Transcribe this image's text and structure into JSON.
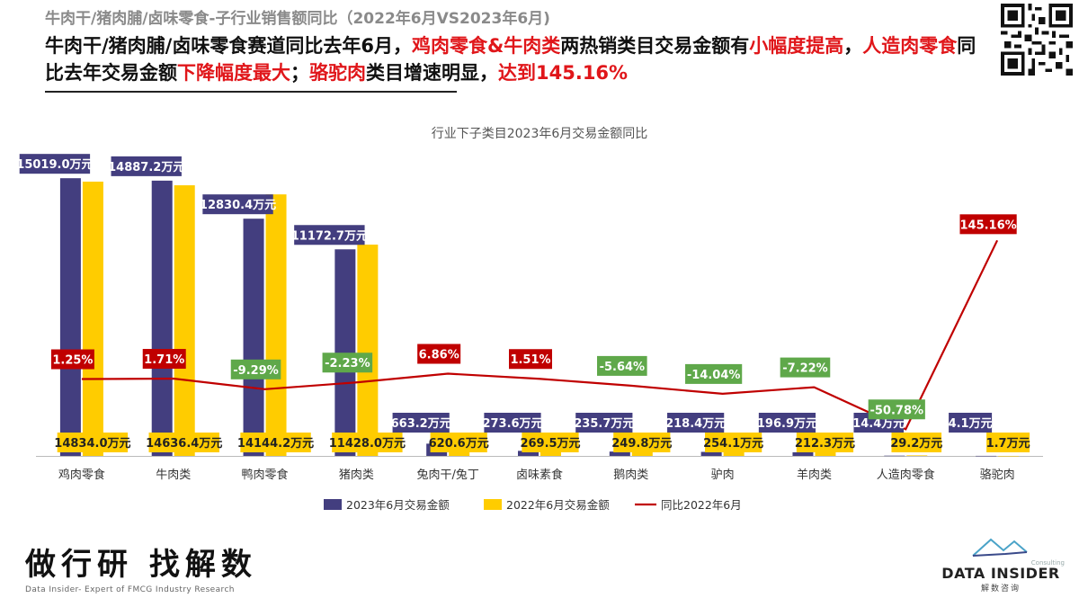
{
  "page": {
    "subtitle": "牛肉干/猪肉脯/卤味零食-子行业销售额同比（2022年6月VS2023年6月)",
    "headline_parts": [
      {
        "text": "牛肉干/猪肉脯/卤味零食赛道同比去年6月，",
        "highlight": false
      },
      {
        "text": "鸡肉零食&牛肉类",
        "highlight": true
      },
      {
        "text": "两热销类目交易金额有",
        "highlight": false
      },
      {
        "text": "小幅度提高",
        "highlight": true
      },
      {
        "text": "，",
        "highlight": false
      },
      {
        "text": "人造肉零食",
        "highlight": true
      },
      {
        "text": "同比去年交易金额",
        "highlight": false
      },
      {
        "text": "下降幅度最大",
        "highlight": true
      },
      {
        "text": "；",
        "highlight": false
      },
      {
        "text": "骆驼肉",
        "highlight": true
      },
      {
        "text": "类目增速明显，",
        "highlight": false
      },
      {
        "text": "达到145.16%",
        "highlight": true
      }
    ],
    "brand_title": "做行研 找解数",
    "brand_subtitle": "Data Insider- Expert of FMCG Industry Research",
    "logo_name": "DATA INSIDER",
    "logo_cn": "解数咨询",
    "logo_tag": "Consulting"
  },
  "colors": {
    "bar_2023": "#433e7f",
    "bar_2022": "#ffcc00",
    "line": "#c00000",
    "label_positive": "#c00000",
    "label_negative": "#5fa84a",
    "label_navy": "#433e7f",
    "highlight": "#e0161a"
  },
  "chart_data": {
    "type": "bar",
    "title": "行业下子类目2023年6月交易金额同比",
    "categories": [
      "鸡肉零食",
      "牛肉类",
      "鸭肉零食",
      "猪肉类",
      "兔肉干/兔丁",
      "卤味素食",
      "鹅肉类",
      "驴肉",
      "羊肉类",
      "人造肉零食",
      "骆驼肉"
    ],
    "unit": "万元",
    "series": [
      {
        "name": "2023年6月交易金额",
        "type": "bar",
        "values": [
          15019.0,
          14887.2,
          12830.4,
          11172.7,
          663.2,
          273.6,
          235.7,
          218.4,
          196.9,
          14.4,
          4.1
        ],
        "labels": [
          "15019.0万元",
          "14887.2万元",
          "12830.4万元",
          "11172.7万元",
          "663.2万元",
          "273.6万元",
          "235.7万元",
          "218.4万元",
          "196.9万元",
          "14.4万元",
          "4.1万元"
        ]
      },
      {
        "name": "2022年6月交易金额",
        "type": "bar",
        "values": [
          14834.0,
          14636.4,
          14144.2,
          11428.0,
          620.6,
          269.5,
          249.8,
          254.1,
          212.3,
          29.2,
          1.7
        ],
        "labels": [
          "14834.0万元",
          "14636.4万元",
          "14144.2万元",
          "11428.0万元",
          "620.6万元",
          "269.5万元",
          "249.8万元",
          "254.1万元",
          "212.3万元",
          "29.2万元",
          "1.7万元"
        ]
      },
      {
        "name": "同比2022年6月",
        "type": "line",
        "values": [
          1.25,
          1.71,
          -9.29,
          -2.23,
          6.86,
          1.51,
          -5.64,
          -14.04,
          -7.22,
          -50.78,
          145.16
        ],
        "labels": [
          "1.25%",
          "1.71%",
          "-9.29%",
          "-2.23%",
          "6.86%",
          "1.51%",
          "-5.64%",
          "-14.04%",
          "-7.22%",
          "-50.78%",
          "145.16%"
        ]
      }
    ],
    "bar_ylim": [
      0,
      16000
    ],
    "line_ylim": [
      -100,
      180
    ],
    "legend": "bottom-center",
    "grid": false
  }
}
